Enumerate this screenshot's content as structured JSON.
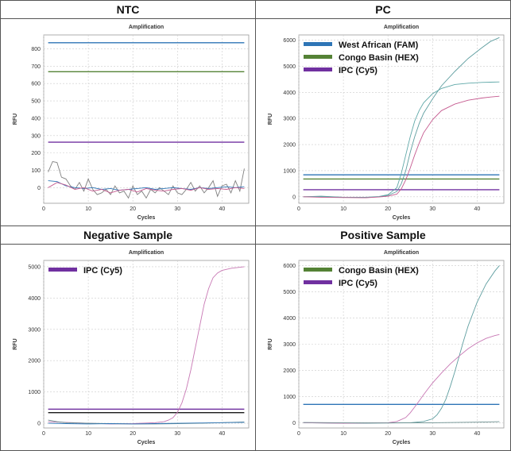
{
  "panels": [
    {
      "header": "NTC",
      "chart_data": {
        "type": "line",
        "title": "Amplification",
        "xlabel": "Cycles",
        "ylabel": "RFU",
        "xlim": [
          0,
          46
        ],
        "ylim": [
          -90,
          880
        ],
        "xticks": [
          0,
          10,
          20,
          30,
          40
        ],
        "yticks": [
          0,
          100,
          200,
          300,
          400,
          500,
          600,
          700,
          800
        ],
        "grid": true,
        "legend": [],
        "thresholds": [
          {
            "value": 835,
            "color": "#2e75b6"
          },
          {
            "value": 668,
            "color": "#548235"
          },
          {
            "value": 262,
            "color": "#7030a0"
          }
        ],
        "series": [
          {
            "color": "#7f7f7f",
            "x": [
              1,
              2,
              3,
              4,
              5,
              6,
              7,
              8,
              9,
              10,
              11,
              12,
              13,
              14,
              15,
              16,
              17,
              18,
              19,
              20,
              21,
              22,
              23,
              24,
              25,
              26,
              27,
              28,
              29,
              30,
              31,
              32,
              33,
              34,
              35,
              36,
              37,
              38,
              39,
              40,
              41,
              42,
              43,
              44,
              45
            ],
            "values": [
              90,
              150,
              145,
              60,
              50,
              10,
              -10,
              30,
              -20,
              50,
              -10,
              -40,
              -30,
              -10,
              -40,
              10,
              -30,
              -20,
              -60,
              10,
              -40,
              -20,
              -60,
              -10,
              -30,
              0,
              -20,
              -40,
              10,
              -30,
              -40,
              -10,
              30,
              -20,
              10,
              -30,
              0,
              40,
              -50,
              10,
              20,
              -30,
              40,
              -20,
              110
            ]
          },
          {
            "color": "#2e75b6",
            "x": [
              1,
              3,
              5,
              7,
              9,
              11,
              13,
              15,
              17,
              19,
              21,
              23,
              25,
              27,
              29,
              31,
              33,
              35,
              37,
              39,
              41,
              43,
              45
            ],
            "values": [
              40,
              35,
              10,
              0,
              -5,
              0,
              -10,
              -5,
              -15,
              -10,
              -5,
              0,
              -10,
              -5,
              0,
              -5,
              -10,
              0,
              -5,
              0,
              5,
              0,
              5
            ]
          },
          {
            "color": "#c55a8f",
            "x": [
              1,
              3,
              5,
              7,
              9,
              11,
              13,
              15,
              17,
              19,
              21,
              23,
              25,
              27,
              29,
              31,
              33,
              35,
              37,
              39,
              41,
              43,
              45
            ],
            "values": [
              0,
              30,
              15,
              -10,
              0,
              -20,
              -10,
              -30,
              -15,
              -10,
              -25,
              -5,
              -15,
              -20,
              -10,
              -5,
              -15,
              0,
              -10,
              -5,
              -10,
              0,
              -5
            ]
          }
        ]
      }
    },
    {
      "header": "PC",
      "chart_data": {
        "type": "line",
        "title": "Amplification",
        "xlabel": "Cycles",
        "ylabel": "RFU",
        "xlim": [
          0,
          46
        ],
        "ylim": [
          -250,
          6200
        ],
        "xticks": [
          0,
          10,
          20,
          30,
          40
        ],
        "yticks": [
          0,
          1000,
          2000,
          3000,
          4000,
          5000,
          6000
        ],
        "grid": true,
        "legend": [
          {
            "label": "West African (FAM)",
            "color": "#2e75b6"
          },
          {
            "label": "Congo Basin (HEX)",
            "color": "#548235"
          },
          {
            "label": "IPC (Cy5)",
            "color": "#7030a0"
          }
        ],
        "thresholds": [
          {
            "value": 840,
            "color": "#2e75b6"
          },
          {
            "value": 680,
            "color": "#548235"
          },
          {
            "value": 270,
            "color": "#7030a0"
          }
        ],
        "series": [
          {
            "color": "#5f9ea0",
            "x": [
              1,
              5,
              10,
              15,
              18,
              20,
              22,
              23,
              24,
              25,
              26,
              27,
              28,
              30,
              32,
              35,
              38,
              41,
              43,
              45
            ],
            "values": [
              0,
              20,
              -20,
              -30,
              0,
              50,
              200,
              500,
              1000,
              1700,
              2300,
              2800,
              3200,
              3750,
              4250,
              4800,
              5300,
              5700,
              5950,
              6100
            ]
          },
          {
            "color": "#5fa8a8",
            "x": [
              1,
              5,
              10,
              15,
              18,
              20,
              22,
              23,
              24,
              25,
              26,
              27,
              28,
              30,
              32,
              35,
              38,
              41,
              43,
              45
            ],
            "values": [
              0,
              10,
              -20,
              -20,
              10,
              80,
              350,
              900,
              1600,
              2300,
              2900,
              3300,
              3600,
              3950,
              4150,
              4300,
              4350,
              4380,
              4390,
              4400
            ]
          },
          {
            "color": "#c55a8f",
            "x": [
              1,
              5,
              10,
              15,
              18,
              20,
              22,
              23,
              24,
              25,
              26,
              27,
              28,
              30,
              32,
              35,
              38,
              41,
              43,
              45
            ],
            "values": [
              0,
              -20,
              -30,
              -40,
              -10,
              20,
              100,
              300,
              650,
              1100,
              1600,
              2050,
              2450,
              2950,
              3300,
              3550,
              3700,
              3780,
              3820,
              3850
            ]
          }
        ]
      }
    },
    {
      "header": "Negative Sample",
      "chart_data": {
        "type": "line",
        "title": "Amplification",
        "xlabel": "Cycles",
        "ylabel": "RFU",
        "xlim": [
          0,
          46
        ],
        "ylim": [
          -150,
          5200
        ],
        "xticks": [
          0,
          10,
          20,
          30,
          40
        ],
        "yticks": [
          0,
          1000,
          2000,
          3000,
          4000,
          5000
        ],
        "grid": true,
        "legend": [
          {
            "label": "IPC (Cy5)",
            "color": "#7030a0"
          }
        ],
        "thresholds": [
          {
            "value": 450,
            "color": "#7030a0"
          },
          {
            "value": 340,
            "color": "#1a1a1a"
          }
        ],
        "series": [
          {
            "color": "#c878b4",
            "x": [
              1,
              5,
              10,
              15,
              20,
              25,
              27,
              28,
              29,
              30,
              31,
              32,
              33,
              34,
              35,
              36,
              37,
              38,
              39,
              40,
              42,
              45
            ],
            "values": [
              50,
              30,
              0,
              -20,
              -10,
              20,
              50,
              100,
              180,
              350,
              650,
              1100,
              1700,
              2400,
              3100,
              3800,
              4300,
              4650,
              4800,
              4880,
              4950,
              5000
            ]
          },
          {
            "color": "#6b8e8e",
            "x": [
              1,
              3,
              5,
              10,
              15,
              20,
              25,
              30,
              35,
              40,
              45
            ],
            "values": [
              100,
              50,
              20,
              0,
              -10,
              -20,
              -20,
              -10,
              0,
              20,
              40
            ]
          },
          {
            "color": "#2e75b6",
            "x": [
              1,
              5,
              10,
              15,
              20,
              25,
              30,
              35,
              40,
              45
            ],
            "values": [
              0,
              -10,
              -20,
              -10,
              -20,
              -10,
              0,
              10,
              20,
              30
            ]
          }
        ]
      }
    },
    {
      "header": "Positive Sample",
      "chart_data": {
        "type": "line",
        "title": "Amplification",
        "xlabel": "Cycles",
        "ylabel": "RFU",
        "xlim": [
          0,
          46
        ],
        "ylim": [
          -200,
          6200
        ],
        "xticks": [
          0,
          10,
          20,
          30,
          40
        ],
        "yticks": [
          0,
          1000,
          2000,
          3000,
          4000,
          5000,
          6000
        ],
        "grid": true,
        "legend": [
          {
            "label": "Congo Basin (HEX)",
            "color": "#548235"
          },
          {
            "label": "IPC (Cy5)",
            "color": "#7030a0"
          }
        ],
        "thresholds": [
          {
            "value": 700,
            "color": "#2e75b6"
          }
        ],
        "series": [
          {
            "color": "#5f9ea0",
            "x": [
              1,
              5,
              10,
              15,
              20,
              25,
              28,
              30,
              31,
              32,
              33,
              34,
              35,
              36,
              37,
              38,
              40,
              42,
              44,
              45
            ],
            "values": [
              0,
              -10,
              -20,
              -20,
              -10,
              0,
              50,
              150,
              300,
              550,
              900,
              1400,
              1950,
              2550,
              3150,
              3700,
              4600,
              5300,
              5800,
              6000
            ]
          },
          {
            "color": "#c878b4",
            "x": [
              1,
              5,
              10,
              15,
              20,
              22,
              24,
              25,
              26,
              27,
              28,
              29,
              30,
              32,
              34,
              36,
              38,
              40,
              42,
              44,
              45
            ],
            "values": [
              0,
              -10,
              -20,
              -10,
              0,
              50,
              200,
              380,
              600,
              830,
              1070,
              1300,
              1520,
              1900,
              2250,
              2550,
              2830,
              3050,
              3220,
              3330,
              3370
            ]
          },
          {
            "color": "#6b8e8e",
            "x": [
              1,
              10,
              20,
              30,
              40,
              45
            ],
            "values": [
              10,
              0,
              -10,
              0,
              20,
              40
            ]
          }
        ]
      }
    }
  ]
}
